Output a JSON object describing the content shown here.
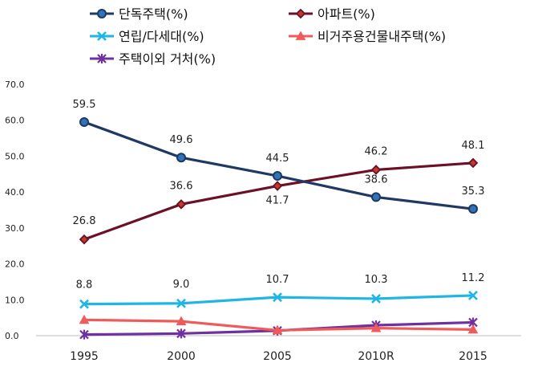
{
  "chart_data": {
    "type": "line",
    "categories": [
      "1995",
      "2000",
      "2005",
      "2010R",
      "2015"
    ],
    "ylim": [
      0,
      70
    ],
    "yticks": [
      "0.0",
      "10.0",
      "20.0",
      "30.0",
      "40.0",
      "50.0",
      "60.0",
      "70.0"
    ],
    "grid": false,
    "legend_position": "top",
    "series": [
      {
        "name": "단독주택(%)",
        "values": [
          59.5,
          49.6,
          44.5,
          38.6,
          35.3
        ],
        "labels": [
          "59.5",
          "49.6",
          "44.5",
          "38.6",
          "35.3"
        ],
        "label_side": "above",
        "color": "#1f3864",
        "fill": "#2e75b6",
        "marker": "circle"
      },
      {
        "name": "아파트(%)",
        "values": [
          26.8,
          36.6,
          41.7,
          46.2,
          48.1
        ],
        "labels": [
          "26.8",
          "36.6",
          "41.7",
          "46.2",
          "48.1"
        ],
        "label_side": "mixed",
        "color": "#6b1027",
        "fill": "#c0392b",
        "marker": "diamond"
      },
      {
        "name": "연립/다세대(%)",
        "values": [
          8.8,
          9.0,
          10.7,
          10.3,
          11.2
        ],
        "labels": [
          "8.8",
          "9.0",
          "10.7",
          "10.3",
          "11.2"
        ],
        "label_side": "above",
        "color": "#1fb6e6",
        "fill": "#1fb6e6",
        "marker": "x"
      },
      {
        "name": "비거주용건물내주택(%)",
        "values": [
          4.4,
          4.0,
          1.5,
          2.1,
          1.7
        ],
        "labels": [],
        "color": "#f05a5a",
        "fill": "#f05a5a",
        "marker": "triangle"
      },
      {
        "name": "주택이외 거처(%)",
        "values": [
          0.3,
          0.6,
          1.4,
          2.9,
          3.7
        ],
        "labels": [],
        "color": "#7030a0",
        "fill": "#7030a0",
        "marker": "star"
      }
    ]
  }
}
